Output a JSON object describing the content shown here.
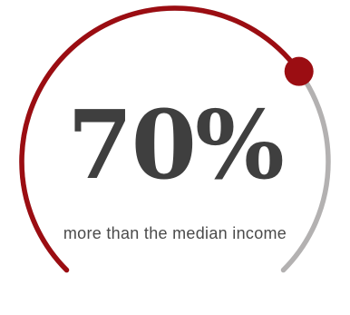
{
  "stat": {
    "value_text": "70%",
    "description": "more than the median income",
    "progress_fraction": 0.7
  },
  "colors": {
    "accent": "#9b0d12",
    "track": "#b3b1b1",
    "value_text": "#3f3f3f",
    "description_text": "#4a4a4a",
    "background": "#ffffff"
  }
}
